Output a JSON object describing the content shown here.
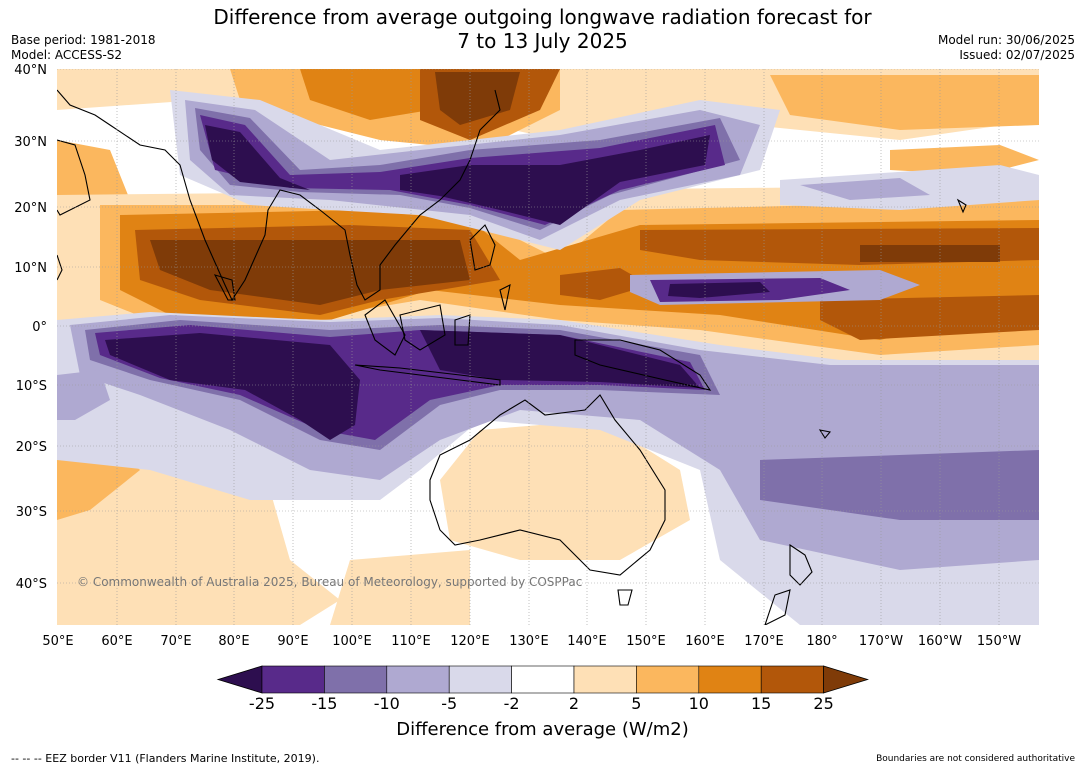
{
  "header": {
    "title_line1": "Difference from average outgoing longwave radiation forecast for",
    "title_line2": "7 to 13 July 2025",
    "base_period": "Base period: 1981-2018",
    "model": "Model: ACCESS-S2",
    "model_run": "Model run: 30/06/2025",
    "issued": "Issued: 02/07/2025"
  },
  "map": {
    "lat_labels": [
      "40°N",
      "30°N",
      "20°N",
      "10°N",
      "0°",
      "10°S",
      "20°S",
      "30°S",
      "40°S"
    ],
    "lon_labels": [
      "50°E",
      "60°E",
      "70°E",
      "80°E",
      "90°E",
      "100°E",
      "110°E",
      "120°E",
      "130°E",
      "140°E",
      "150°E",
      "160°E",
      "170°E",
      "180°",
      "170°W",
      "160°W",
      "150°W"
    ],
    "copyright": "© Commonwealth of Australia 2025, Bureau of Meteorology, supported by COSPPac"
  },
  "colorbar": {
    "title": "Difference from average (W/m2)",
    "labels": [
      "-25",
      "-15",
      "-10",
      "-5",
      "-2",
      "2",
      "5",
      "10",
      "15",
      "25"
    ],
    "colors": [
      "#2d0e4f",
      "#582a8a",
      "#7f70aa",
      "#afa9d1",
      "#d9d9ea",
      "#ffffff",
      "#fee0b6",
      "#fbb75e",
      "#e08314",
      "#b2570a",
      "#7f3b08"
    ]
  },
  "footer": {
    "eez_note": "--  --  -- EEZ border V11 (Flanders Marine Institute, 2019).",
    "boundaries_note": "Boundaries are not considered authoritative"
  }
}
